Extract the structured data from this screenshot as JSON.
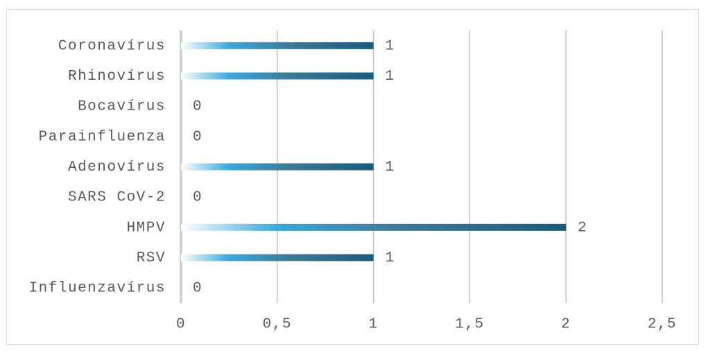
{
  "chart_data": {
    "type": "bar",
    "orientation": "horizontal",
    "categories": [
      "Coronavírus",
      "Rhinovírus",
      "Bocavírus",
      "Parainfluenza",
      "Adenovírus",
      "SARS CoV-2",
      "HMPV",
      "RSV",
      "Influenzavírus"
    ],
    "values": [
      1,
      1,
      0,
      0,
      1,
      0,
      2,
      1,
      0
    ],
    "color": "#1a5a7a",
    "xlim": [
      0,
      2.5
    ],
    "xticks": [
      0,
      {
        "value": 0.5,
        "label": "0,5"
      },
      1,
      {
        "value": 1.5,
        "label": "1,5"
      },
      2,
      {
        "value": 2.5,
        "label": "2,5"
      }
    ],
    "grid": true
  }
}
